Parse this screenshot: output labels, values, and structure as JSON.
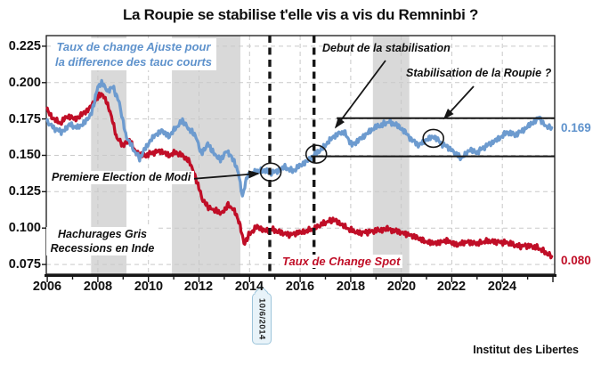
{
  "credit": "Institut des Libertes",
  "colors": {
    "blue": "#6D9BCF",
    "red": "#C00E27",
    "band": "#D9D9D9",
    "grid": "#C9C9C9",
    "ink": "#161616"
  },
  "chart_data": {
    "type": "line",
    "title": "La Roupie se stabilise t'elle vis a vis du Remninbi ?",
    "xlabel": "",
    "ylabel": "",
    "grid": true,
    "xlim": [
      2005.96,
      2026.07
    ],
    "ylim": [
      0.0683,
      0.2323
    ],
    "x_tick_labels": [
      "2006",
      "2008",
      "2010",
      "2012",
      "2014",
      "2016",
      "2018",
      "2020",
      "2022",
      "2024"
    ],
    "x_tick_values": [
      2006,
      2008,
      2010,
      2012,
      2014,
      2016,
      2018,
      2020,
      2022,
      2024
    ],
    "y_tick_labels": [
      "0.225",
      "0.200",
      "0.175",
      "0.150",
      "0.125",
      "0.100",
      "0.075"
    ],
    "y_tick_values": [
      0.225,
      0.2,
      0.175,
      0.15,
      0.125,
      0.1,
      0.075
    ],
    "annotations": {
      "adjusted_label_line1": "Taux de change Ajuste pour",
      "adjusted_label_line2": "la difference des tauc courts",
      "debut": "Debut de la stabilisation",
      "stabilisation": "Stabilisation de la Roupie ?",
      "modi": "Premiere Election de Modi",
      "hachures_line1": "Hachurages Gris",
      "hachures_line2": "Recessions en Inde",
      "spot_label": "Taux de Change Spot"
    },
    "recession_bands": [
      [
        2007.73,
        2009.13
      ],
      [
        2010.93,
        2013.64
      ],
      [
        2018.88,
        2020.32
      ]
    ],
    "event_lines": [
      {
        "x": 2014.8,
        "label": "10/6/2014"
      },
      {
        "x": 2016.55,
        "label": ""
      }
    ],
    "channel_lines": [
      {
        "value": 0.1755,
        "from_x": 2017.45
      },
      {
        "value": 0.1493,
        "from_x": 2016.43
      }
    ],
    "circle_markers": [
      {
        "x": 2014.84,
        "y": 0.1385
      },
      {
        "x": 2016.64,
        "y": 0.1508
      },
      {
        "x": 2021.27,
        "y": 0.1617
      }
    ],
    "series": [
      {
        "id": "spot",
        "name": "Taux de Change Spot",
        "color": "#C00E27",
        "end_label": "0.080",
        "points": [
          [
            2006.0,
            0.181
          ],
          [
            2006.2,
            0.176
          ],
          [
            2006.5,
            0.172
          ],
          [
            2006.8,
            0.177
          ],
          [
            2007.1,
            0.175
          ],
          [
            2007.45,
            0.179
          ],
          [
            2007.75,
            0.184
          ],
          [
            2008.05,
            0.191
          ],
          [
            2008.2,
            0.192
          ],
          [
            2008.45,
            0.182
          ],
          [
            2008.75,
            0.162
          ],
          [
            2009.0,
            0.157
          ],
          [
            2009.25,
            0.16
          ],
          [
            2009.55,
            0.151
          ],
          [
            2009.9,
            0.15
          ],
          [
            2010.2,
            0.152
          ],
          [
            2010.5,
            0.153
          ],
          [
            2010.8,
            0.15
          ],
          [
            2011.1,
            0.152
          ],
          [
            2011.4,
            0.149
          ],
          [
            2011.65,
            0.145
          ],
          [
            2011.9,
            0.133
          ],
          [
            2012.15,
            0.119
          ],
          [
            2012.4,
            0.114
          ],
          [
            2012.65,
            0.112
          ],
          [
            2012.9,
            0.11
          ],
          [
            2013.15,
            0.116
          ],
          [
            2013.4,
            0.112
          ],
          [
            2013.6,
            0.104
          ],
          [
            2013.78,
            0.089
          ],
          [
            2014.0,
            0.096
          ],
          [
            2014.3,
            0.101
          ],
          [
            2014.6,
            0.098
          ],
          [
            2014.9,
            0.099
          ],
          [
            2015.2,
            0.097
          ],
          [
            2015.6,
            0.0955
          ],
          [
            2016.0,
            0.097
          ],
          [
            2016.5,
            0.099
          ],
          [
            2016.9,
            0.103
          ],
          [
            2017.3,
            0.106
          ],
          [
            2017.6,
            0.103
          ],
          [
            2017.9,
            0.0995
          ],
          [
            2018.3,
            0.0965
          ],
          [
            2018.7,
            0.0975
          ],
          [
            2019.1,
            0.0985
          ],
          [
            2019.45,
            0.0995
          ],
          [
            2019.8,
            0.098
          ],
          [
            2020.2,
            0.096
          ],
          [
            2020.6,
            0.0935
          ],
          [
            2021.0,
            0.0905
          ],
          [
            2021.4,
            0.0895
          ],
          [
            2021.8,
            0.0915
          ],
          [
            2022.2,
            0.0885
          ],
          [
            2022.6,
            0.0905
          ],
          [
            2023.0,
            0.0895
          ],
          [
            2023.4,
            0.091
          ],
          [
            2023.8,
            0.0905
          ],
          [
            2024.2,
            0.09
          ],
          [
            2024.6,
            0.0875
          ],
          [
            2025.0,
            0.088
          ],
          [
            2025.4,
            0.0865
          ],
          [
            2025.95,
            0.0805
          ]
        ]
      },
      {
        "id": "adjusted",
        "name": "Taux de change Ajuste pour la difference des tauc courts",
        "color": "#6D9BCF",
        "end_label": "0.169",
        "points": [
          [
            2006.0,
            0.173
          ],
          [
            2006.25,
            0.169
          ],
          [
            2006.55,
            0.166
          ],
          [
            2006.9,
            0.171
          ],
          [
            2007.2,
            0.169
          ],
          [
            2007.5,
            0.173
          ],
          [
            2007.75,
            0.179
          ],
          [
            2008.0,
            0.197
          ],
          [
            2008.15,
            0.2
          ],
          [
            2008.4,
            0.194
          ],
          [
            2008.6,
            0.197
          ],
          [
            2008.85,
            0.186
          ],
          [
            2009.1,
            0.164
          ],
          [
            2009.4,
            0.154
          ],
          [
            2009.65,
            0.148
          ],
          [
            2009.95,
            0.157
          ],
          [
            2010.25,
            0.164
          ],
          [
            2010.55,
            0.167
          ],
          [
            2010.8,
            0.163
          ],
          [
            2011.1,
            0.169
          ],
          [
            2011.35,
            0.174
          ],
          [
            2011.6,
            0.168
          ],
          [
            2011.85,
            0.164
          ],
          [
            2012.1,
            0.151
          ],
          [
            2012.35,
            0.158
          ],
          [
            2012.6,
            0.151
          ],
          [
            2012.85,
            0.147
          ],
          [
            2013.1,
            0.153
          ],
          [
            2013.3,
            0.149
          ],
          [
            2013.55,
            0.139
          ],
          [
            2013.72,
            0.121
          ],
          [
            2013.9,
            0.136
          ],
          [
            2014.15,
            0.138
          ],
          [
            2014.45,
            0.14
          ],
          [
            2014.8,
            0.138
          ],
          [
            2015.1,
            0.139
          ],
          [
            2015.4,
            0.142
          ],
          [
            2015.7,
            0.139
          ],
          [
            2016.0,
            0.143
          ],
          [
            2016.3,
            0.146
          ],
          [
            2016.6,
            0.151
          ],
          [
            2016.9,
            0.155
          ],
          [
            2017.2,
            0.161
          ],
          [
            2017.5,
            0.165
          ],
          [
            2017.75,
            0.166
          ],
          [
            2018.05,
            0.157
          ],
          [
            2018.35,
            0.161
          ],
          [
            2018.65,
            0.165
          ],
          [
            2018.95,
            0.169
          ],
          [
            2019.25,
            0.171
          ],
          [
            2019.5,
            0.173
          ],
          [
            2019.8,
            0.171
          ],
          [
            2020.1,
            0.167
          ],
          [
            2020.4,
            0.161
          ],
          [
            2020.7,
            0.157
          ],
          [
            2021.0,
            0.161
          ],
          [
            2021.3,
            0.163
          ],
          [
            2021.6,
            0.158
          ],
          [
            2021.9,
            0.155
          ],
          [
            2022.15,
            0.151
          ],
          [
            2022.4,
            0.148
          ],
          [
            2022.7,
            0.154
          ],
          [
            2023.0,
            0.152
          ],
          [
            2023.3,
            0.156
          ],
          [
            2023.6,
            0.159
          ],
          [
            2023.9,
            0.162
          ],
          [
            2024.2,
            0.166
          ],
          [
            2024.5,
            0.164
          ],
          [
            2024.8,
            0.167
          ],
          [
            2025.1,
            0.171
          ],
          [
            2025.45,
            0.176
          ],
          [
            2025.7,
            0.17
          ],
          [
            2025.95,
            0.169
          ]
        ]
      }
    ]
  }
}
